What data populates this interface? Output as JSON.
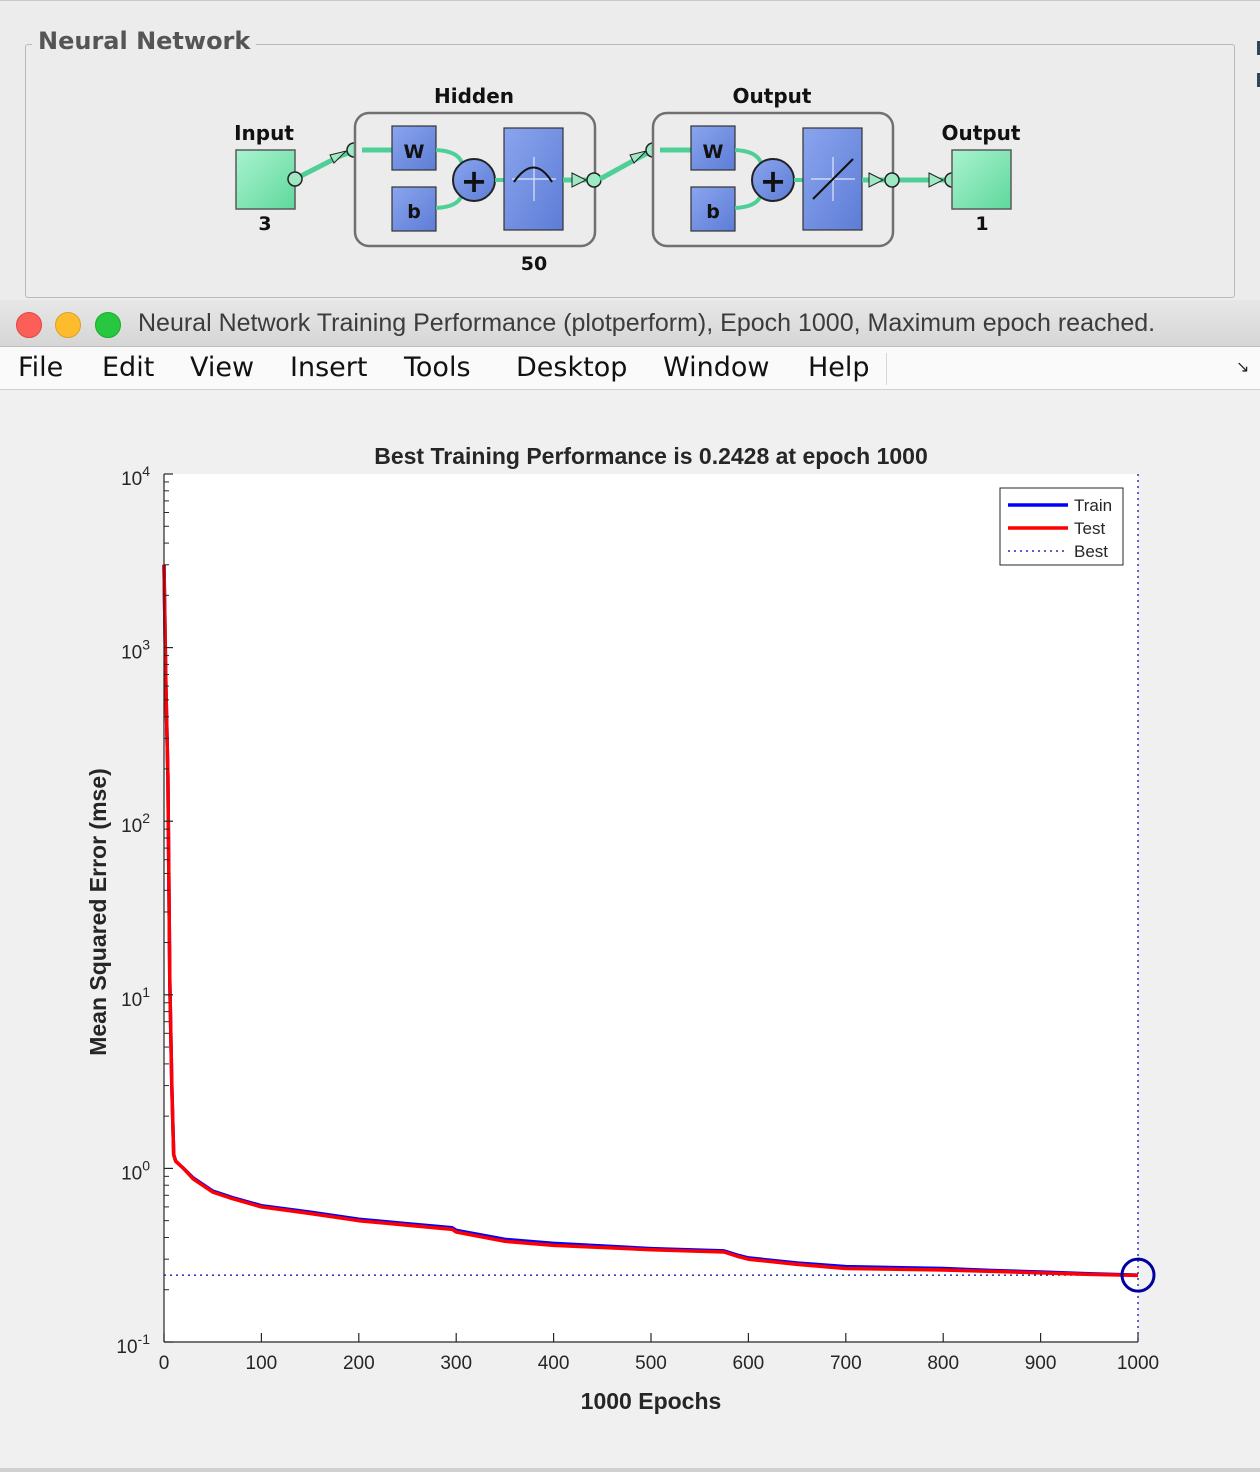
{
  "network_panel": {
    "title": "Neural Network",
    "input_label": "Input",
    "input_size": "3",
    "hidden_label": "Hidden",
    "hidden_size": "50",
    "output_layer_label": "Output",
    "output_layer_size": "1",
    "output_label": "Output",
    "output_size": "1",
    "weight_label": "W",
    "bias_label": "b",
    "sum_symbol": "+",
    "colors": {
      "io_box": "#7ee8b4",
      "layer_block": "#6f8fe0",
      "wire": "#4fcf98"
    }
  },
  "window": {
    "title": "Neural Network Training Performance (plotperform), Epoch 1000, Maximum epoch reached."
  },
  "menubar": {
    "items": [
      "File",
      "Edit",
      "View",
      "Insert",
      "Tools",
      "Desktop",
      "Window",
      "Help"
    ]
  },
  "chart_data": {
    "type": "line",
    "title": "Best Training Performance is 0.2428 at epoch 1000",
    "xlabel": "1000 Epochs",
    "ylabel": "Mean Squared Error  (mse)",
    "xlim": [
      0,
      1000
    ],
    "ylim": [
      0.1,
      10000
    ],
    "yscale": "log",
    "xticks": [
      "0",
      "100",
      "200",
      "300",
      "400",
      "500",
      "600",
      "700",
      "800",
      "900",
      "1000"
    ],
    "yticks": [
      {
        "base": "10",
        "exp": "-1"
      },
      {
        "base": "10",
        "exp": "0"
      },
      {
        "base": "10",
        "exp": "1"
      },
      {
        "base": "10",
        "exp": "2"
      },
      {
        "base": "10",
        "exp": "3"
      },
      {
        "base": "10",
        "exp": "4"
      }
    ],
    "grid": false,
    "legend_position": "top-right",
    "series": [
      {
        "name": "Train",
        "color": "#0000ff",
        "x": [
          0,
          2,
          4,
          6,
          8,
          10,
          12,
          20,
          30,
          50,
          70,
          100,
          150,
          200,
          250,
          296,
          300,
          350,
          400,
          500,
          575,
          590,
          600,
          650,
          700,
          800,
          850,
          900,
          950,
          1000
        ],
        "y": [
          3000,
          600,
          180,
          12,
          3,
          1.2,
          1.1,
          1.0,
          0.88,
          0.74,
          0.68,
          0.61,
          0.56,
          0.51,
          0.48,
          0.455,
          0.44,
          0.39,
          0.37,
          0.345,
          0.335,
          0.315,
          0.305,
          0.285,
          0.272,
          0.265,
          0.258,
          0.253,
          0.247,
          0.2428
        ]
      },
      {
        "name": "Test",
        "color": "#ff0000",
        "x": [
          0,
          2,
          4,
          6,
          8,
          10,
          12,
          20,
          30,
          50,
          70,
          100,
          150,
          200,
          250,
          296,
          300,
          350,
          400,
          500,
          575,
          590,
          600,
          650,
          700,
          800,
          850,
          900,
          950,
          1000
        ],
        "y": [
          3000,
          600,
          180,
          12,
          3,
          1.2,
          1.1,
          1.0,
          0.87,
          0.73,
          0.67,
          0.6,
          0.55,
          0.5,
          0.47,
          0.445,
          0.43,
          0.38,
          0.36,
          0.34,
          0.33,
          0.31,
          0.3,
          0.28,
          0.265,
          0.26,
          0.255,
          0.25,
          0.245,
          0.242
        ]
      }
    ],
    "best": {
      "name": "Best",
      "epoch": 1000,
      "value": 0.2428,
      "color": "#0000a0"
    }
  }
}
